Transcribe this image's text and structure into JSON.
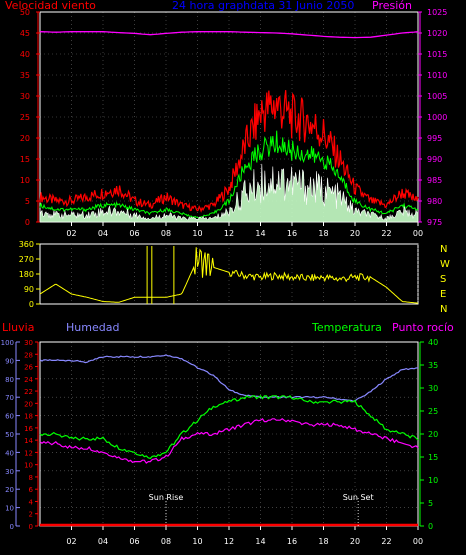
{
  "colors": {
    "wind_avg": "#ffffff",
    "wind_gust": "#ff0000",
    "wind_avg_line": "#00ff00",
    "wind_avg_fill": "#c8ffc8",
    "pressure": "#ff00ff",
    "direction": "#ffff00",
    "rain": "#ff0000",
    "humidity": "#8888ff",
    "temperature": "#00ff00",
    "dewpoint": "#ff00ff",
    "axis": "#ffffff",
    "title": "#0000ff"
  },
  "labels": {
    "wind": "Velocidad viento",
    "title": "24 hora graphdata  31 Junio 2050",
    "pressure": "Presión",
    "rain": "Lluvia",
    "humidity": "Humedad",
    "temperature": "Temperatura",
    "dewpoint": "Punto rocío",
    "sunrise": "Sun Rise",
    "sunset": "Sun Set"
  },
  "chart_data": [
    {
      "type": "line",
      "name": "wind_pressure",
      "x_ticks": [
        "02",
        "04",
        "06",
        "08",
        "10",
        "12",
        "14",
        "16",
        "18",
        "20",
        "22",
        "00"
      ],
      "y_left": {
        "label": "Velocidad viento",
        "ylim": [
          0,
          50
        ],
        "ticks": [
          "0",
          "5",
          "10",
          "15",
          "20",
          "25",
          "30",
          "35",
          "40",
          "45",
          "50"
        ]
      },
      "y_right": {
        "label": "Presión",
        "ylim": [
          975,
          1025
        ],
        "ticks": [
          "975",
          "980",
          "985",
          "990",
          "995",
          "1000",
          "1005",
          "1010",
          "1015",
          "1020",
          "1025"
        ]
      },
      "hours": [
        0,
        1,
        2,
        3,
        4,
        5,
        6,
        7,
        8,
        9,
        10,
        11,
        12,
        13,
        14,
        15,
        16,
        17,
        18,
        19,
        20,
        21,
        22,
        23,
        24
      ],
      "series": [
        {
          "key": "gust",
          "values": [
            6,
            5,
            5,
            6,
            7,
            8,
            5,
            4,
            6,
            4,
            3,
            4,
            8,
            18,
            26,
            28,
            25,
            24,
            21,
            15,
            8,
            5,
            4,
            7,
            5
          ]
        },
        {
          "key": "avg_line",
          "values": [
            4,
            3,
            3,
            3,
            4,
            4,
            3,
            2,
            3,
            2,
            1,
            2,
            5,
            13,
            17,
            19,
            17,
            16,
            15,
            11,
            5,
            3,
            2,
            4,
            3
          ]
        },
        {
          "key": "avg",
          "values": [
            3,
            2,
            2,
            2,
            3,
            3,
            2,
            1,
            2,
            1,
            1,
            1,
            3,
            8,
            11,
            12,
            11,
            10,
            9,
            7,
            3,
            2,
            1,
            3,
            2
          ]
        },
        {
          "key": "pressure",
          "values": [
            1020.3,
            1020.2,
            1020.3,
            1020.3,
            1020.3,
            1020.1,
            1019.9,
            1019.6,
            1019.9,
            1020.2,
            1020.3,
            1020.3,
            1020.3,
            1020.2,
            1020.1,
            1020,
            1019.8,
            1019.5,
            1019.2,
            1019,
            1018.9,
            1019,
            1019.5,
            1020,
            1020.3
          ]
        }
      ]
    },
    {
      "type": "line",
      "name": "wind_direction",
      "x_ticks": [
        "02",
        "04",
        "06",
        "08",
        "10",
        "12",
        "14",
        "16",
        "18",
        "20",
        "22",
        "00"
      ],
      "y_left": {
        "ylim": [
          0,
          360
        ],
        "ticks": [
          "0",
          "90",
          "180",
          "270",
          "360"
        ]
      },
      "y_right": {
        "ticks": [
          "N",
          "W",
          "S",
          "E",
          "N"
        ]
      },
      "hours": [
        0,
        1,
        2,
        3,
        4,
        5,
        6,
        7,
        8,
        9,
        10,
        11,
        12,
        13,
        14,
        15,
        16,
        17,
        18,
        19,
        20,
        21,
        22,
        23,
        24
      ],
      "series": [
        {
          "key": "direction",
          "values": [
            60,
            120,
            60,
            40,
            15,
            10,
            40,
            40,
            40,
            60,
            270,
            220,
            190,
            170,
            160,
            170,
            160,
            155,
            160,
            150,
            160,
            160,
            100,
            15,
            5
          ]
        }
      ]
    },
    {
      "type": "line",
      "name": "temp_humidity",
      "x_ticks": [
        "02",
        "04",
        "06",
        "08",
        "10",
        "12",
        "14",
        "16",
        "18",
        "20",
        "22",
        "00"
      ],
      "y_humidity": {
        "label": "Humedad",
        "ylim": [
          0,
          100
        ],
        "ticks": [
          "0",
          "10",
          "20",
          "30",
          "40",
          "50",
          "60",
          "70",
          "80",
          "90",
          "100"
        ]
      },
      "y_rain": {
        "label": "Lluvia",
        "ylim": [
          0,
          30
        ],
        "ticks": [
          "0",
          "2",
          "4",
          "6",
          "8",
          "10",
          "12",
          "14",
          "16",
          "18",
          "20",
          "22",
          "24",
          "26",
          "28",
          "30"
        ]
      },
      "y_temp": {
        "label": "Temperatura",
        "ylim": [
          0,
          40
        ],
        "ticks": [
          "0",
          "5",
          "10",
          "15",
          "20",
          "25",
          "30",
          "35",
          "40"
        ]
      },
      "hours": [
        0,
        1,
        2,
        3,
        4,
        5,
        6,
        7,
        8,
        9,
        10,
        11,
        12,
        13,
        14,
        15,
        16,
        17,
        18,
        19,
        20,
        21,
        22,
        23,
        24
      ],
      "series": [
        {
          "key": "humidity",
          "values": [
            90,
            90,
            90,
            89,
            92,
            92,
            92,
            92,
            93,
            91,
            86,
            82,
            74,
            71,
            70,
            70,
            70,
            70,
            70,
            69,
            68,
            73,
            80,
            85,
            86
          ]
        },
        {
          "key": "temperature",
          "values": [
            20,
            20,
            19,
            19,
            19,
            17,
            16,
            15,
            16,
            20,
            23,
            26,
            27,
            28,
            28,
            28,
            28,
            27,
            27,
            27,
            27,
            24,
            21,
            20,
            19
          ]
        },
        {
          "key": "dewpoint",
          "values": [
            18,
            18,
            17,
            17,
            16,
            15,
            14,
            14,
            15,
            19,
            20,
            20,
            21,
            22,
            23,
            23,
            23,
            22,
            22,
            22,
            21,
            20,
            19,
            18,
            17
          ]
        },
        {
          "key": "rain",
          "values": [
            0,
            0,
            0,
            0,
            0,
            0,
            0,
            0,
            0,
            0,
            0,
            0,
            0,
            0,
            0,
            0,
            0,
            0,
            0,
            0,
            0,
            0,
            0,
            0,
            0
          ]
        }
      ],
      "annotations": [
        {
          "text": "Sun Rise",
          "hour": 8
        },
        {
          "text": "Sun Set",
          "hour": 20.2
        }
      ]
    }
  ]
}
